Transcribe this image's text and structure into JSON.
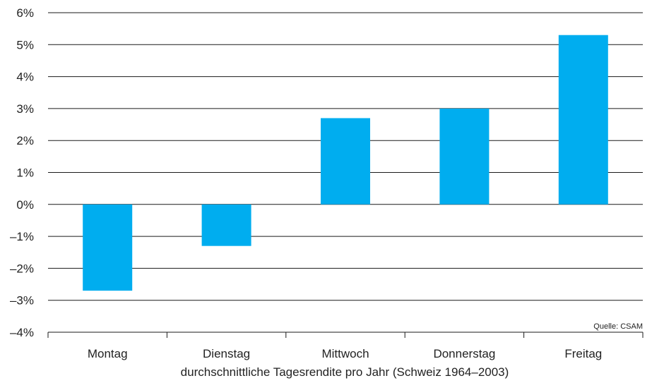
{
  "chart_data": {
    "type": "bar",
    "categories": [
      "Montag",
      "Dienstag",
      "Mittwoch",
      "Donnerstag",
      "Freitag"
    ],
    "values": [
      -2.7,
      -1.3,
      2.7,
      3.0,
      5.3
    ],
    "ylim": [
      -4,
      6
    ],
    "yticks": [
      6,
      5,
      4,
      3,
      2,
      1,
      0,
      -1,
      -2,
      -3,
      -4
    ],
    "ytick_labels": [
      "6%",
      "5%",
      "4%",
      "3%",
      "2%",
      "1%",
      "0%",
      "–1%",
      "–2%",
      "–3%",
      "–4%"
    ],
    "xlabel": "durchschnittliche Tagesrendite pro Jahr (Schweiz 1964–2003)",
    "source": "Quelle: CSAM",
    "grid": true,
    "bar_color": "#00adef"
  }
}
